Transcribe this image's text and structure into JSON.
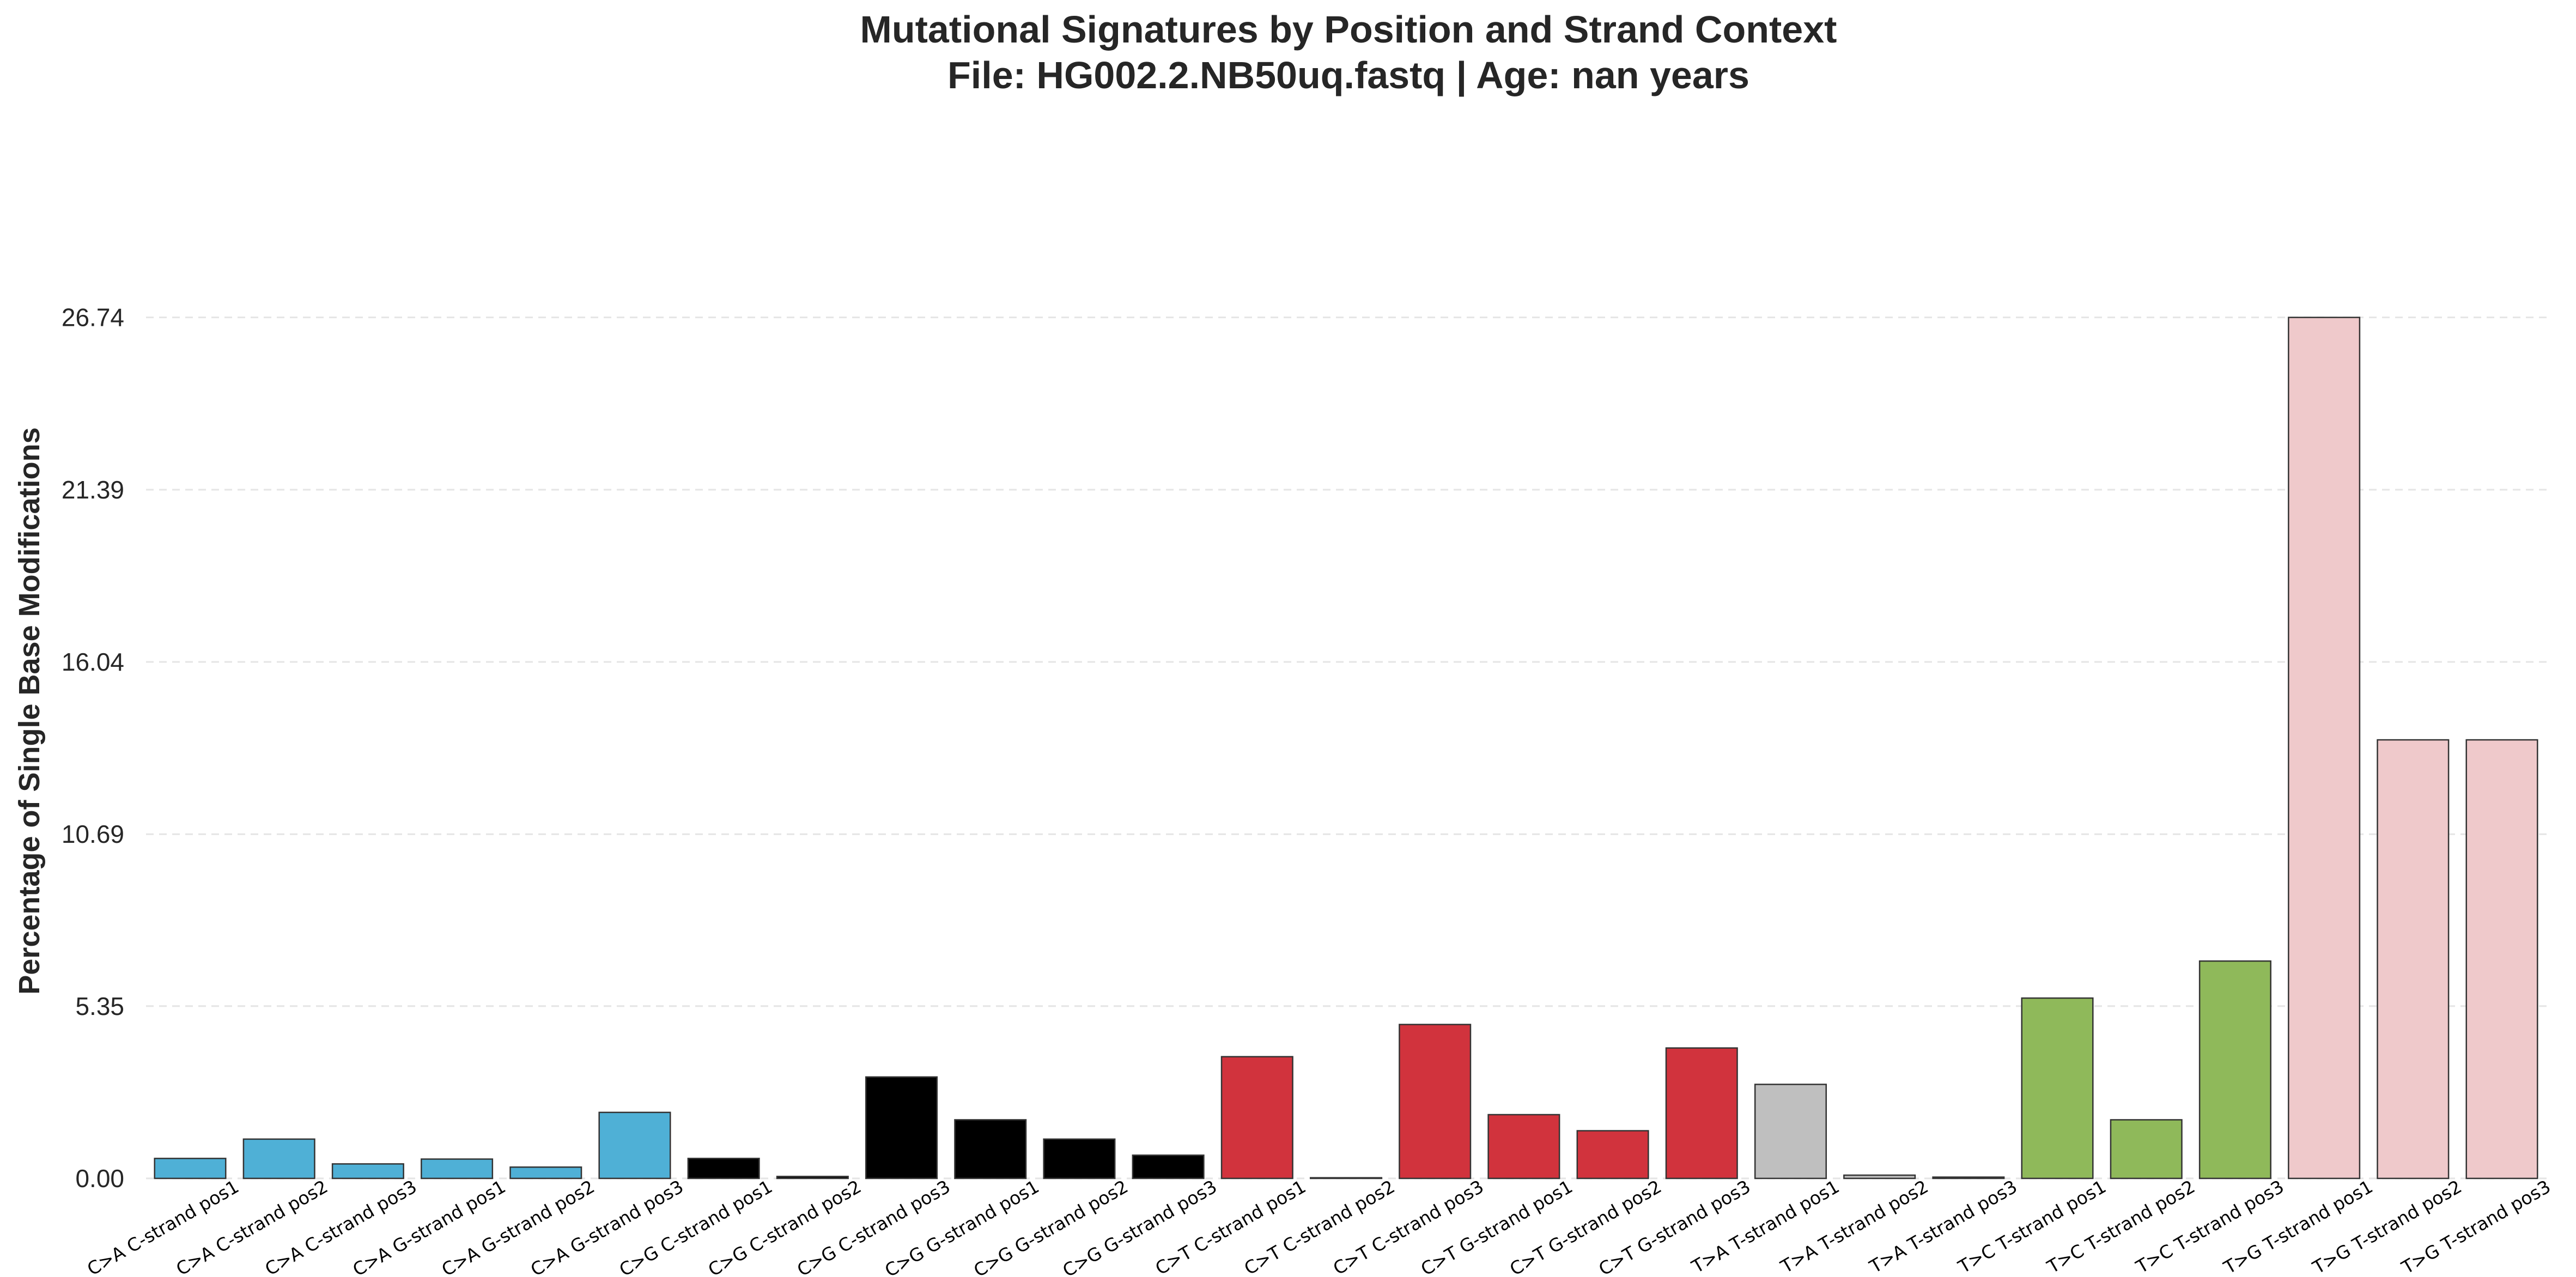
{
  "chart_data": {
    "type": "bar",
    "title": "Mutational Signatures by Position and Strand Context",
    "subtitle": "File: HG002.2.NB50uq.fastq | Age: nan years",
    "xlabel": "",
    "ylabel": "Percentage of Single Base Modifications",
    "ylim": [
      0,
      27.8
    ],
    "yticks": [
      "0.00",
      "5.35",
      "10.69",
      "16.04",
      "21.39",
      "26.74"
    ],
    "grid": true,
    "legend": "none",
    "categories": [
      "C>A C-strand pos1",
      "C>A C-strand pos2",
      "C>A C-strand pos3",
      "C>A G-strand pos1",
      "C>A G-strand pos2",
      "C>A G-strand pos3",
      "C>G C-strand pos1",
      "C>G C-strand pos2",
      "C>G C-strand pos3",
      "C>G G-strand pos1",
      "C>G G-strand pos2",
      "C>G G-strand pos3",
      "C>T C-strand pos1",
      "C>T C-strand pos2",
      "C>T C-strand pos3",
      "C>T G-strand pos1",
      "C>T G-strand pos2",
      "C>T G-strand pos3",
      "T>A T-strand pos1",
      "T>A T-strand pos2",
      "T>A T-strand pos3",
      "T>C T-strand pos1",
      "T>C T-strand pos2",
      "T>C T-strand pos3",
      "T>G T-strand pos1",
      "T>G T-strand pos2",
      "T>G T-strand pos3"
    ],
    "values": [
      0.62,
      1.22,
      0.45,
      0.6,
      0.35,
      2.05,
      0.62,
      0.06,
      3.15,
      1.82,
      1.22,
      0.72,
      3.78,
      0.02,
      4.78,
      1.98,
      1.48,
      4.05,
      2.92,
      0.1,
      0.04,
      5.6,
      1.82,
      6.75,
      26.74,
      13.62,
      13.62
    ],
    "colors": [
      "#4fb0d6",
      "#4fb0d6",
      "#4fb0d6",
      "#4fb0d6",
      "#4fb0d6",
      "#4fb0d6",
      "#000000",
      "#000000",
      "#000000",
      "#000000",
      "#000000",
      "#000000",
      "#d1333d",
      "#d1333d",
      "#d1333d",
      "#d1333d",
      "#d1333d",
      "#d1333d",
      "#bfbfbf",
      "#bfbfbf",
      "#bfbfbf",
      "#8fb95a",
      "#8fb95a",
      "#8fb95a",
      "#efc9cb",
      "#efc9cb",
      "#efc9cb"
    ]
  }
}
